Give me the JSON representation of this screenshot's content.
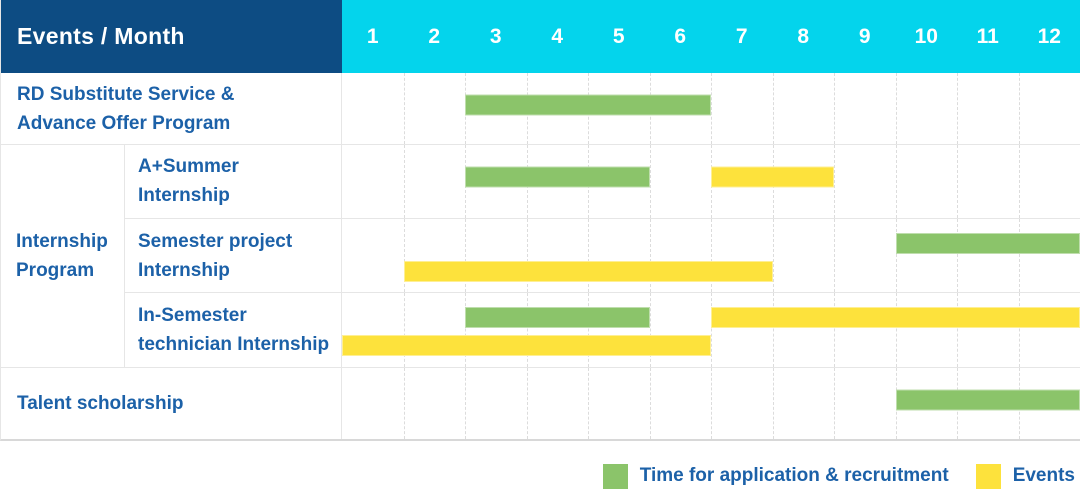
{
  "header": {
    "title": "Events / Month",
    "months": [
      "1",
      "2",
      "3",
      "4",
      "5",
      "6",
      "7",
      "8",
      "9",
      "10",
      "11",
      "12"
    ]
  },
  "colors": {
    "header_bg": "#0d4c83",
    "month_header_bg": "#04d4ec",
    "green": "#8bc46a",
    "yellow": "#fde23c",
    "label_text": "#1c61a8",
    "grid_line": "#dcdcdc",
    "row_border": "#e6e6e6",
    "table_bottom_border": "#d8d8d8"
  },
  "groups": {
    "internship": {
      "label": "Internship Program",
      "lines": [
        "Internship",
        "Program"
      ]
    }
  },
  "chart_data": {
    "type": "bar",
    "subtype": "gantt-schedule",
    "title": "Events / Month",
    "x_label": "Month",
    "x_categories": [
      "1",
      "2",
      "3",
      "4",
      "5",
      "6",
      "7",
      "8",
      "9",
      "10",
      "11",
      "12"
    ],
    "x_range": [
      1,
      12
    ],
    "grid": "vertical-dashed",
    "legend_position": "bottom-right",
    "series_legend": [
      {
        "name": "Time for application & recruitment",
        "color": "#8bc46a"
      },
      {
        "name": "Events",
        "color": "#fde23c"
      }
    ],
    "rows": [
      {
        "label": "RD Substitute Service & Advance Offer Program",
        "label_lines": [
          "RD Substitute Service &",
          "Advance Offer Program"
        ],
        "group": null,
        "bars": [
          {
            "series": "Time for application & recruitment",
            "color": "green",
            "start_month": 3,
            "end_month": 6,
            "lane": "mid"
          }
        ]
      },
      {
        "label": "A+Summer Internship",
        "label_lines": [
          "A+Summer",
          "Internship"
        ],
        "group": "Internship Program",
        "bars": [
          {
            "series": "Time for application & recruitment",
            "color": "green",
            "start_month": 3,
            "end_month": 5,
            "lane": "mid"
          },
          {
            "series": "Events",
            "color": "yellow",
            "start_month": 7,
            "end_month": 8,
            "lane": "mid"
          }
        ]
      },
      {
        "label": "Semester project Internship",
        "label_lines": [
          "Semester project",
          "Internship"
        ],
        "group": "Internship Program",
        "bars": [
          {
            "series": "Time for application & recruitment",
            "color": "green",
            "start_month": 10,
            "end_month": 12,
            "lane": "top"
          },
          {
            "series": "Events",
            "color": "yellow",
            "start_month": 2,
            "end_month": 7,
            "lane": "bottom"
          }
        ]
      },
      {
        "label": "In-Semester technician Internship",
        "label_lines": [
          "In-Semester",
          "technician Internship"
        ],
        "group": "Internship Program",
        "bars": [
          {
            "series": "Time for application & recruitment",
            "color": "green",
            "start_month": 3,
            "end_month": 5,
            "lane": "top"
          },
          {
            "series": "Events",
            "color": "yellow",
            "start_month": 7,
            "end_month": 12,
            "lane": "top"
          },
          {
            "series": "Events",
            "color": "yellow",
            "start_month": 1,
            "end_month": 6,
            "lane": "bottom"
          }
        ]
      },
      {
        "label": "Talent scholarship",
        "label_lines": [
          "Talent scholarship"
        ],
        "group": null,
        "bars": [
          {
            "series": "Time for application & recruitment",
            "color": "green",
            "start_month": 10,
            "end_month": 12,
            "lane": "mid"
          }
        ]
      }
    ]
  },
  "legend": {
    "items": [
      {
        "label": "Time for application & recruitment",
        "color_key": "green"
      },
      {
        "label": "Events",
        "color_key": "yellow"
      }
    ]
  }
}
